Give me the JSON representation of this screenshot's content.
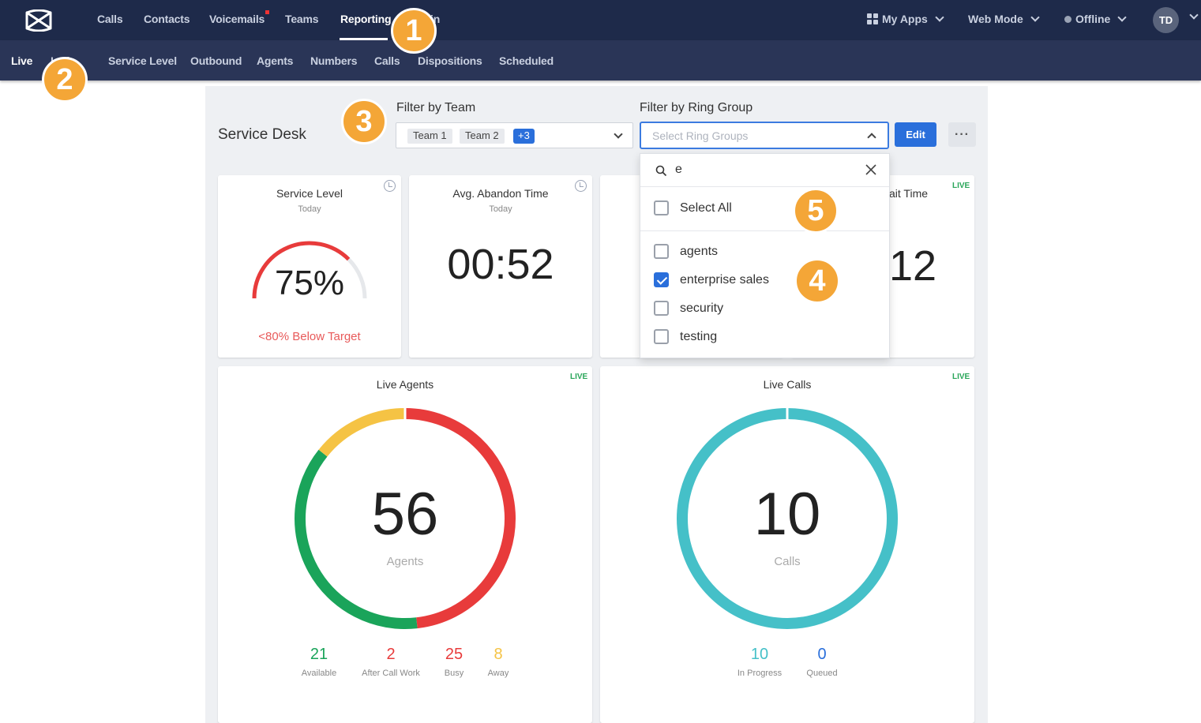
{
  "topnav": {
    "items": [
      "Calls",
      "Contacts",
      "Voicemails",
      "Teams",
      "Reporting",
      "in"
    ],
    "active": "Reporting",
    "my_apps": "My Apps",
    "web_mode": "Web Mode",
    "status": "Offline",
    "avatar": "TD"
  },
  "subnav": {
    "items": [
      "Live",
      "Inbound",
      "Service Level",
      "Outbound",
      "Agents",
      "Numbers",
      "Calls",
      "Dispositions",
      "Scheduled"
    ],
    "active": "Live",
    "inbound_visible": "I     nd"
  },
  "badges": [
    "1",
    "2",
    "3",
    "4",
    "5"
  ],
  "page": {
    "title": "Service Desk",
    "filter_team_label": "Filter by Team",
    "filter_ring_label": "Filter by Ring Group",
    "team_chips": [
      "Team 1",
      "Team 2",
      "+3"
    ],
    "ring_placeholder": "Select Ring Groups",
    "edit_label": "Edit",
    "more_label": "···"
  },
  "dropdown": {
    "search_value": "e",
    "select_all": "Select All",
    "options": [
      {
        "label": "agents",
        "checked": false
      },
      {
        "label": "enterprise sales",
        "checked": true
      },
      {
        "label": "security",
        "checked": false
      },
      {
        "label": "testing",
        "checked": false
      }
    ]
  },
  "cards": {
    "service_level": {
      "title": "Service Level",
      "sub": "Today",
      "value": "75%",
      "target": "<80% Below Target",
      "gauge_fraction": 0.75
    },
    "abandon": {
      "title": "Avg. Abandon Time",
      "sub": "Today",
      "value": "00:52"
    },
    "wait": {
      "title_partial": "ait Time",
      "value_partial": "12",
      "live": "LIVE"
    },
    "live_agents": {
      "title": "Live Agents",
      "live": "LIVE",
      "value": "56",
      "unit": "Agents",
      "stats": [
        {
          "n": "21",
          "l": "Available",
          "color": "#1aa45a"
        },
        {
          "n": "2",
          "l": "After Call Work",
          "color": "#e83b3b"
        },
        {
          "n": "25",
          "l": "Busy",
          "color": "#e83b3b"
        },
        {
          "n": "8",
          "l": "Away",
          "color": "#f5c344"
        }
      ]
    },
    "live_calls": {
      "title": "Live Calls",
      "live": "LIVE",
      "value": "10",
      "unit": "Calls",
      "stats": [
        {
          "n": "10",
          "l": "In Progress",
          "color": "#45c0c8"
        },
        {
          "n": "0",
          "l": "Queued",
          "color": "#2a6fdb"
        }
      ]
    }
  },
  "colors": {
    "available": "#1aa45a",
    "busy": "#e83b3b",
    "away": "#f5c344",
    "calls_ring": "#45c0c8",
    "accent": "#2a6fdb"
  }
}
